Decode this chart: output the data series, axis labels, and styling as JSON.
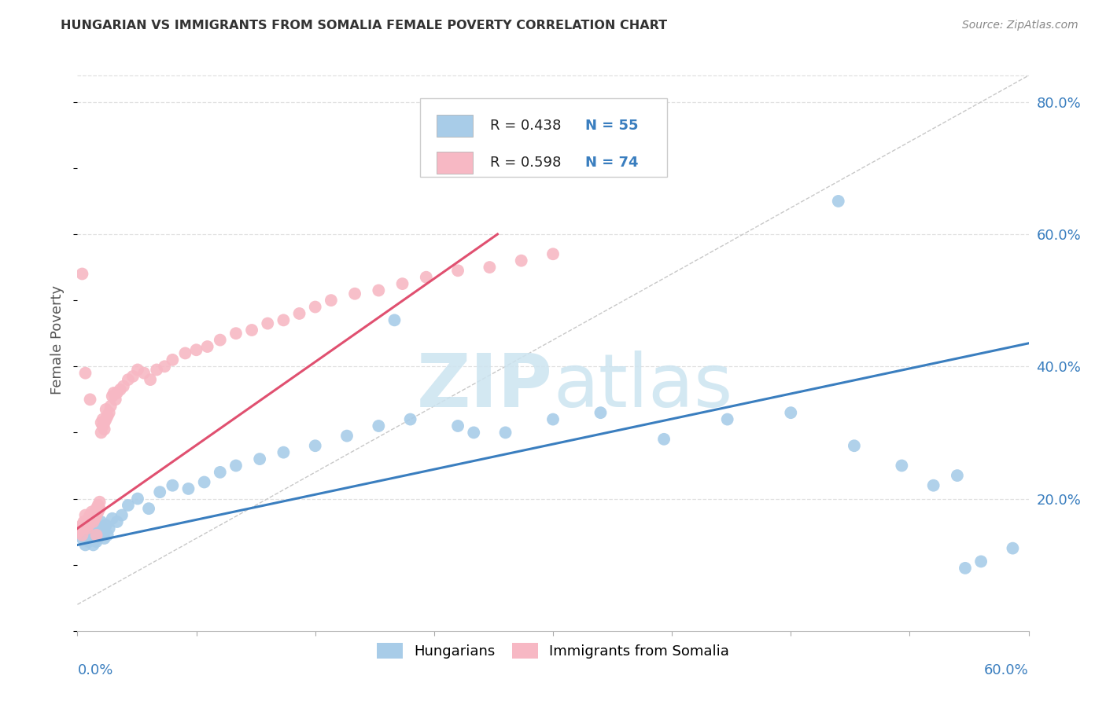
{
  "title": "HUNGARIAN VS IMMIGRANTS FROM SOMALIA FEMALE POVERTY CORRELATION CHART",
  "source": "Source: ZipAtlas.com",
  "ylabel": "Female Poverty",
  "right_ytick_vals": [
    0.2,
    0.4,
    0.6,
    0.8
  ],
  "right_ytick_labels": [
    "20.0%",
    "40.0%",
    "60.0%",
    "80.0%"
  ],
  "xmin": 0.0,
  "xmax": 0.6,
  "ymin": 0.0,
  "ymax": 0.88,
  "legend_blue_r": "R = 0.438",
  "legend_blue_n": "N = 55",
  "legend_pink_r": "R = 0.598",
  "legend_pink_n": "N = 74",
  "blue_scatter_color": "#a8cce8",
  "pink_scatter_color": "#f7b8c4",
  "blue_line_color": "#3a7ebf",
  "pink_line_color": "#e05070",
  "diag_line_color": "#c8c8c8",
  "grid_color": "#e0e0e0",
  "watermark_color": "#cce4f0",
  "title_color": "#333333",
  "source_color": "#888888",
  "axis_label_color": "#3a7ebf",
  "ylabel_color": "#555555",
  "blue_scatter_x": [
    0.003,
    0.005,
    0.006,
    0.007,
    0.008,
    0.009,
    0.01,
    0.01,
    0.011,
    0.012,
    0.012,
    0.013,
    0.014,
    0.015,
    0.015,
    0.016,
    0.017,
    0.018,
    0.019,
    0.02,
    0.022,
    0.025,
    0.028,
    0.032,
    0.038,
    0.045,
    0.052,
    0.06,
    0.07,
    0.08,
    0.09,
    0.1,
    0.115,
    0.13,
    0.15,
    0.17,
    0.19,
    0.21,
    0.24,
    0.27,
    0.3,
    0.33,
    0.37,
    0.41,
    0.45,
    0.49,
    0.52,
    0.54,
    0.555,
    0.57,
    0.2,
    0.25,
    0.48,
    0.56,
    0.59
  ],
  "blue_scatter_y": [
    0.14,
    0.13,
    0.145,
    0.135,
    0.15,
    0.14,
    0.155,
    0.13,
    0.145,
    0.135,
    0.16,
    0.14,
    0.155,
    0.145,
    0.165,
    0.15,
    0.14,
    0.16,
    0.145,
    0.155,
    0.17,
    0.165,
    0.175,
    0.19,
    0.2,
    0.185,
    0.21,
    0.22,
    0.215,
    0.225,
    0.24,
    0.25,
    0.26,
    0.27,
    0.28,
    0.295,
    0.31,
    0.32,
    0.31,
    0.3,
    0.32,
    0.33,
    0.29,
    0.32,
    0.33,
    0.28,
    0.25,
    0.22,
    0.235,
    0.105,
    0.47,
    0.3,
    0.65,
    0.095,
    0.125
  ],
  "pink_scatter_x": [
    0.001,
    0.002,
    0.003,
    0.003,
    0.004,
    0.004,
    0.005,
    0.005,
    0.006,
    0.006,
    0.007,
    0.007,
    0.008,
    0.008,
    0.009,
    0.009,
    0.01,
    0.01,
    0.011,
    0.011,
    0.012,
    0.012,
    0.013,
    0.013,
    0.014,
    0.014,
    0.015,
    0.015,
    0.016,
    0.016,
    0.017,
    0.017,
    0.018,
    0.018,
    0.019,
    0.02,
    0.021,
    0.022,
    0.023,
    0.024,
    0.025,
    0.027,
    0.029,
    0.032,
    0.035,
    0.038,
    0.042,
    0.046,
    0.05,
    0.055,
    0.06,
    0.068,
    0.075,
    0.082,
    0.09,
    0.1,
    0.11,
    0.12,
    0.13,
    0.14,
    0.15,
    0.16,
    0.175,
    0.19,
    0.205,
    0.22,
    0.24,
    0.26,
    0.28,
    0.3,
    0.003,
    0.005,
    0.008,
    0.012
  ],
  "pink_scatter_y": [
    0.15,
    0.155,
    0.16,
    0.145,
    0.155,
    0.165,
    0.16,
    0.175,
    0.165,
    0.155,
    0.17,
    0.16,
    0.175,
    0.165,
    0.17,
    0.18,
    0.175,
    0.165,
    0.18,
    0.17,
    0.185,
    0.175,
    0.19,
    0.18,
    0.195,
    0.185,
    0.315,
    0.3,
    0.31,
    0.32,
    0.305,
    0.315,
    0.32,
    0.335,
    0.325,
    0.33,
    0.34,
    0.355,
    0.36,
    0.35,
    0.36,
    0.365,
    0.37,
    0.38,
    0.385,
    0.395,
    0.39,
    0.38,
    0.395,
    0.4,
    0.41,
    0.42,
    0.425,
    0.43,
    0.44,
    0.45,
    0.455,
    0.465,
    0.47,
    0.48,
    0.49,
    0.5,
    0.51,
    0.515,
    0.525,
    0.535,
    0.545,
    0.55,
    0.56,
    0.57,
    0.54,
    0.39,
    0.35,
    0.145
  ],
  "blue_line_x": [
    0.0,
    0.6
  ],
  "blue_line_y": [
    0.13,
    0.435
  ],
  "pink_line_x": [
    0.0,
    0.265
  ],
  "pink_line_y": [
    0.155,
    0.6
  ],
  "diag_line_x": [
    0.0,
    0.6
  ],
  "diag_line_y": [
    0.04,
    0.84
  ]
}
